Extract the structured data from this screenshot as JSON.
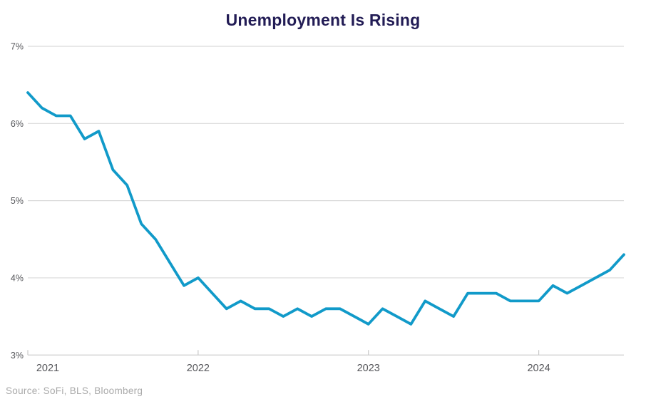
{
  "colors": {
    "title": "#221c55",
    "line": "#119ac9",
    "grid": "#d9d9d9",
    "axis": "#cfcfcf",
    "tick": "#c9c9c9",
    "tick_label": "#55565a",
    "source": "#a9a9a9"
  },
  "chart_data": {
    "type": "line",
    "title": "Unemployment Is Rising",
    "source": "Source: SoFi, BLS, Bloomberg",
    "xlabel": "",
    "ylabel": "",
    "ylim": [
      3,
      7
    ],
    "grid": "horizontal",
    "legend": "none",
    "line_color": "#119ac9",
    "y_ticks": [
      7,
      6,
      5,
      4,
      3
    ],
    "y_tick_labels": [
      "7%",
      "6%",
      "5%",
      "4%",
      "3%"
    ],
    "x_tick_month_indices": [
      0,
      12,
      24,
      36
    ],
    "x_tick_labels": [
      "2021",
      "2022",
      "2023",
      "2024"
    ],
    "x": [
      "2021-01",
      "2021-02",
      "2021-03",
      "2021-04",
      "2021-05",
      "2021-06",
      "2021-07",
      "2021-08",
      "2021-09",
      "2021-10",
      "2021-11",
      "2021-12",
      "2022-01",
      "2022-02",
      "2022-03",
      "2022-04",
      "2022-05",
      "2022-06",
      "2022-07",
      "2022-08",
      "2022-09",
      "2022-10",
      "2022-11",
      "2022-12",
      "2023-01",
      "2023-02",
      "2023-03",
      "2023-04",
      "2023-05",
      "2023-06",
      "2023-07",
      "2023-08",
      "2023-09",
      "2023-10",
      "2023-11",
      "2023-12",
      "2024-01",
      "2024-02",
      "2024-03",
      "2024-04",
      "2024-05",
      "2024-06",
      "2024-07"
    ],
    "values": [
      6.4,
      6.2,
      6.1,
      6.1,
      5.8,
      5.9,
      5.4,
      5.2,
      4.7,
      4.5,
      4.2,
      3.9,
      4.0,
      3.8,
      3.6,
      3.7,
      3.6,
      3.6,
      3.5,
      3.6,
      3.5,
      3.6,
      3.6,
      3.5,
      3.4,
      3.6,
      3.5,
      3.4,
      3.7,
      3.6,
      3.5,
      3.8,
      3.8,
      3.8,
      3.7,
      3.7,
      3.7,
      3.9,
      3.8,
      3.9,
      4.0,
      4.1,
      4.3
    ]
  }
}
